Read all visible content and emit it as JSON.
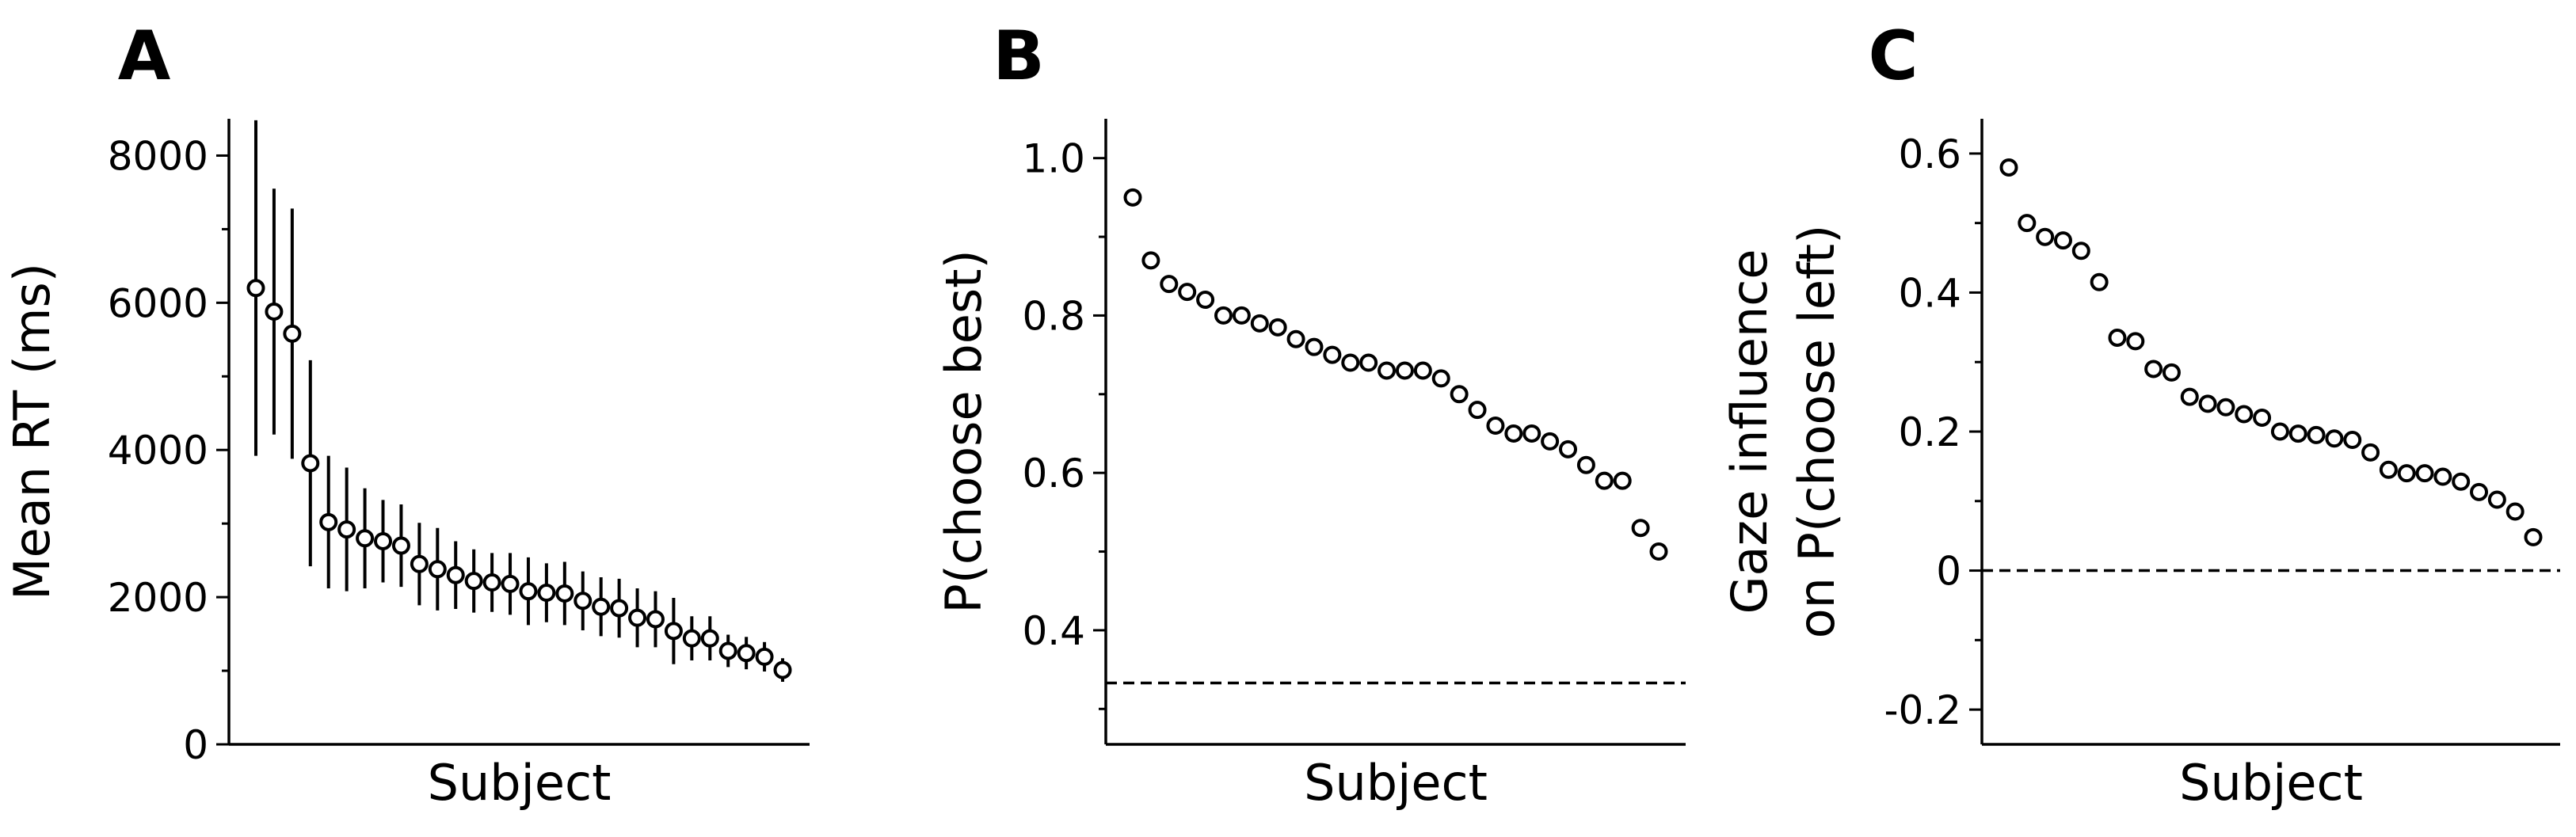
{
  "chart_data": [
    {
      "type": "scatter",
      "panel": "A",
      "xlabel": "Subject",
      "ylabel": "Mean RT (ms)",
      "ylim": [
        0,
        8500
      ],
      "yticks": [
        0,
        2000,
        4000,
        6000,
        8000
      ],
      "ytick_labels": [
        "0",
        "2000",
        "4000",
        "6000",
        "8000"
      ],
      "yminor": [
        1000,
        3000,
        5000,
        7000
      ],
      "grid": false,
      "values": [
        6200,
        5880,
        5580,
        3820,
        3020,
        2920,
        2800,
        2760,
        2700,
        2450,
        2380,
        2300,
        2220,
        2200,
        2180,
        2080,
        2060,
        2050,
        1950,
        1870,
        1850,
        1720,
        1700,
        1540,
        1440,
        1440,
        1270,
        1240,
        1190,
        1010
      ],
      "errors": [
        2280,
        1670,
        1700,
        1400,
        900,
        840,
        680,
        560,
        560,
        560,
        560,
        460,
        430,
        400,
        420,
        460,
        400,
        430,
        400,
        400,
        400,
        400,
        380,
        450,
        300,
        300,
        220,
        220,
        200,
        160
      ]
    },
    {
      "type": "scatter",
      "panel": "B",
      "xlabel": "Subject",
      "ylabel": "P(choose best)",
      "ylim": [
        0.255,
        1.05
      ],
      "yticks": [
        0.4,
        0.6,
        0.8,
        1.0
      ],
      "ytick_labels": [
        "0.4",
        "0.6",
        "0.8",
        "1.0"
      ],
      "yminor": [
        0.3,
        0.5,
        0.7,
        0.9
      ],
      "reference_line": 0.333,
      "grid": false,
      "values": [
        0.95,
        0.87,
        0.84,
        0.83,
        0.82,
        0.8,
        0.8,
        0.79,
        0.785,
        0.77,
        0.76,
        0.75,
        0.74,
        0.74,
        0.73,
        0.73,
        0.73,
        0.72,
        0.7,
        0.68,
        0.66,
        0.65,
        0.65,
        0.64,
        0.63,
        0.61,
        0.59,
        0.59,
        0.53,
        0.5
      ]
    },
    {
      "type": "scatter",
      "panel": "C",
      "xlabel": "Subject",
      "ylabel_line1": "Gaze influence",
      "ylabel_line2": "on P(choose left)",
      "ylim": [
        -0.25,
        0.65
      ],
      "yticks": [
        -0.2,
        0,
        0.2,
        0.4,
        0.6
      ],
      "ytick_labels": [
        "-0.2",
        "0",
        "0.2",
        "0.4",
        "0.6"
      ],
      "yminor": [
        -0.1,
        0.1,
        0.3,
        0.5
      ],
      "reference_line": 0,
      "grid": false,
      "values": [
        0.58,
        0.5,
        0.48,
        0.475,
        0.46,
        0.415,
        0.335,
        0.33,
        0.29,
        0.285,
        0.25,
        0.24,
        0.235,
        0.225,
        0.22,
        0.2,
        0.197,
        0.195,
        0.19,
        0.188,
        0.17,
        0.145,
        0.14,
        0.14,
        0.135,
        0.128,
        0.113,
        0.102,
        0.085,
        0.048
      ]
    }
  ]
}
